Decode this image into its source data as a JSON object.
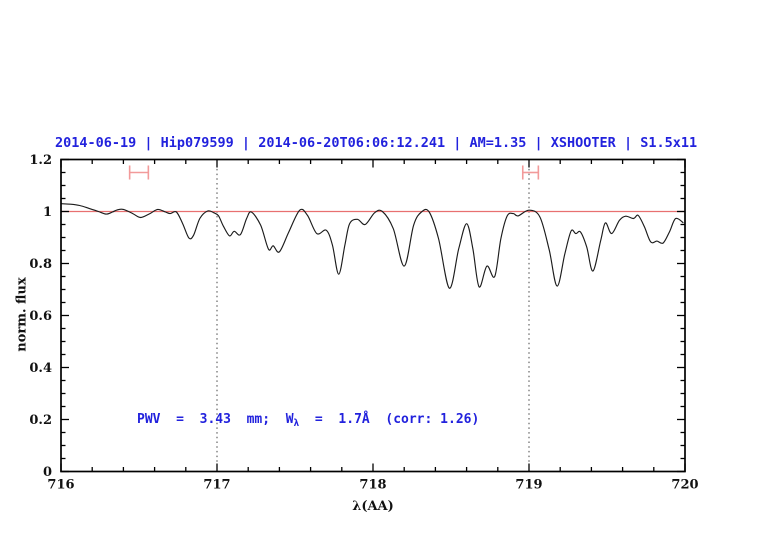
{
  "title": {
    "text": "2014-06-19 | Hip079599 | 2014-06-20T06:06:12.241 | AM=1.35 | XSHOOTER | S1.5x11",
    "color": "#2222dd"
  },
  "annotation": {
    "prefix": "PWV  =  3.43  mm;  W",
    "subscript": "λ",
    "suffix": "  =  1.7Å  (corr: 1.26)",
    "full_text": "PWV = 3.43 mm; Wλ = 1.7Å (corr: 1.26)",
    "color": "#2222dd"
  },
  "chart_data": {
    "type": "line",
    "title": "2014-06-19 | Hip079599 | 2014-06-20T06:06:12.241 | AM=1.35 | XSHOOTER | S1.5x11",
    "xlabel": "λ(AA)",
    "ylabel": "norm. flux",
    "xlim": [
      716,
      720
    ],
    "ylim": [
      0,
      1.2
    ],
    "grid": false,
    "legend": false,
    "x_major_ticks": [
      716,
      717,
      718,
      719,
      720
    ],
    "x_tick_labels": [
      "716",
      "717",
      "718",
      "719",
      "720"
    ],
    "x_minor_step": 0.2,
    "y_major_ticks": [
      0,
      0.2,
      0.4,
      0.6,
      0.8,
      1,
      1.2
    ],
    "y_tick_labels": [
      "0",
      "0.2",
      "0.4",
      "0.6",
      "0.8",
      "1",
      "1.2"
    ],
    "y_minor_step": 0.05,
    "vlines": {
      "x": [
        717,
        719
      ],
      "style": "dotted",
      "color": "#444444"
    },
    "continuum_line": {
      "y": 1.0,
      "color": "#e87070"
    },
    "range_markers": [
      {
        "x1": 716.44,
        "x2": 716.56,
        "y": 1.15,
        "half_height": 0.027,
        "color": "#f29a9a"
      },
      {
        "x1": 718.96,
        "x2": 719.06,
        "y": 1.15,
        "half_height": 0.027,
        "color": "#f29a9a"
      }
    ],
    "series": [
      {
        "name": "telluric spectrum",
        "color": "#1c1c1c",
        "x": [
          716.0,
          716.06,
          716.12,
          716.18,
          716.24,
          716.29,
          716.33,
          716.36,
          716.4,
          716.46,
          716.51,
          716.57,
          716.62,
          716.67,
          716.7,
          716.74,
          716.78,
          716.82,
          716.85,
          716.89,
          716.94,
          716.98,
          717.01,
          717.04,
          717.08,
          717.11,
          717.15,
          717.19,
          717.22,
          717.28,
          717.33,
          717.36,
          717.4,
          717.46,
          717.53,
          717.58,
          717.64,
          717.7,
          717.74,
          717.78,
          717.82,
          717.85,
          717.9,
          717.95,
          718.01,
          718.06,
          718.13,
          718.2,
          718.26,
          718.31,
          718.36,
          718.42,
          718.49,
          718.55,
          718.6,
          718.64,
          718.68,
          718.73,
          718.78,
          718.82,
          718.86,
          718.9,
          718.93,
          719.0,
          719.07,
          719.13,
          719.18,
          719.23,
          719.27,
          719.3,
          719.33,
          719.37,
          719.41,
          719.46,
          719.49,
          719.53,
          719.58,
          719.62,
          719.67,
          719.7,
          719.74,
          719.78,
          719.82,
          719.86,
          719.9,
          719.94,
          719.99
        ],
        "y": [
          1.03,
          1.028,
          1.023,
          1.012,
          1.0,
          0.99,
          0.998,
          1.006,
          1.008,
          0.992,
          0.977,
          0.992,
          1.008,
          0.998,
          0.992,
          0.998,
          0.953,
          0.898,
          0.909,
          0.973,
          1.002,
          0.995,
          0.983,
          0.945,
          0.906,
          0.924,
          0.911,
          0.973,
          0.998,
          0.947,
          0.855,
          0.868,
          0.845,
          0.921,
          1.005,
          0.985,
          0.915,
          0.928,
          0.871,
          0.759,
          0.871,
          0.953,
          0.97,
          0.95,
          0.995,
          1.0,
          0.934,
          0.79,
          0.947,
          0.998,
          0.998,
          0.896,
          0.705,
          0.858,
          0.953,
          0.858,
          0.71,
          0.79,
          0.75,
          0.896,
          0.983,
          0.992,
          0.983,
          1.005,
          0.979,
          0.851,
          0.713,
          0.838,
          0.925,
          0.915,
          0.921,
          0.864,
          0.771,
          0.89,
          0.956,
          0.915,
          0.966,
          0.982,
          0.973,
          0.985,
          0.941,
          0.883,
          0.886,
          0.879,
          0.921,
          0.973,
          0.956
        ]
      }
    ]
  }
}
